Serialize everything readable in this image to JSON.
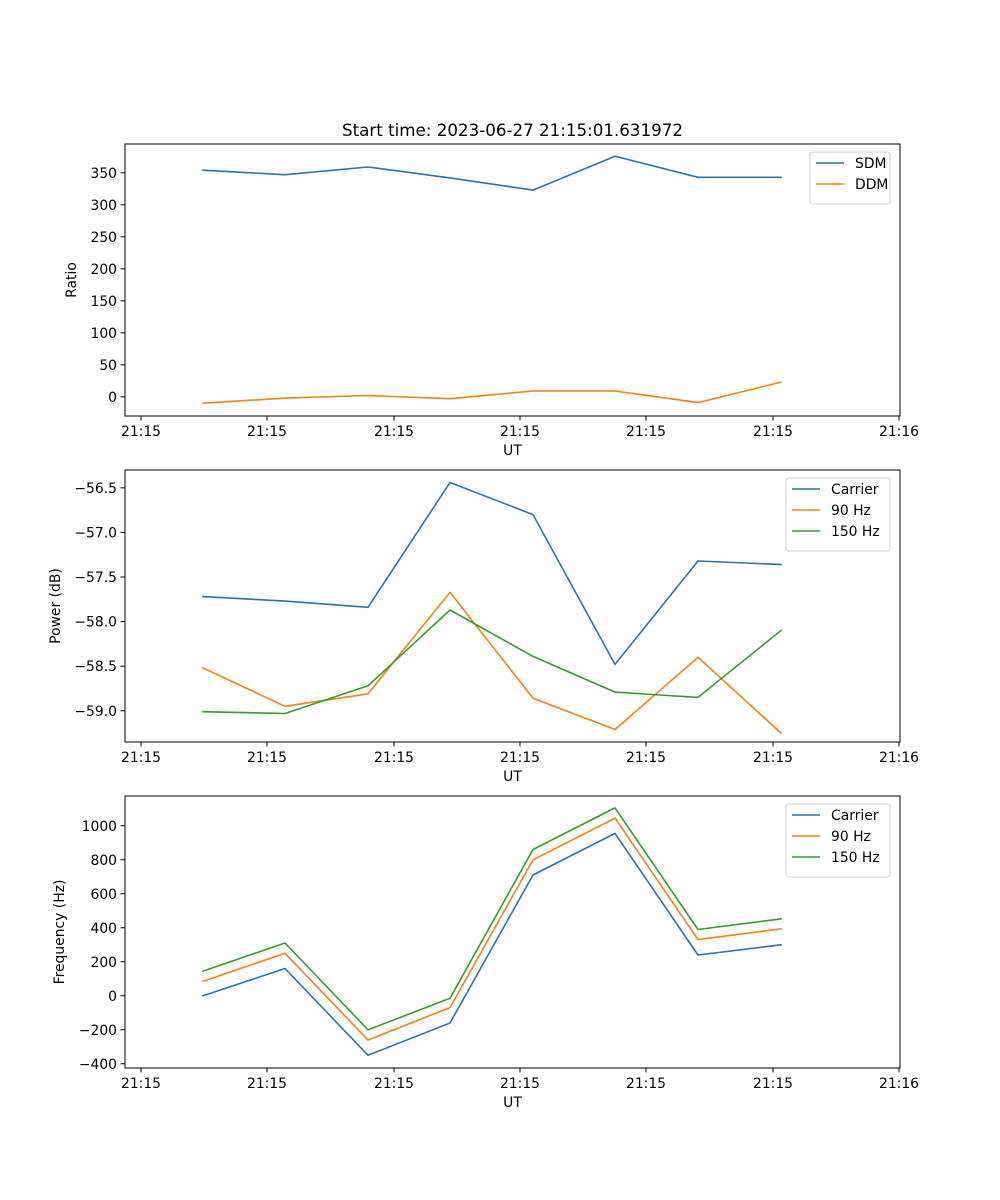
{
  "figure_title": "Start time: 2023-06-27 21:15:01.631972",
  "colors": {
    "blue": "#1f77b4",
    "orange": "#ff7f0e",
    "green": "#2ca02c"
  },
  "chart_data": [
    {
      "type": "line",
      "title": "",
      "xlabel": "UT",
      "ylabel": "Ratio",
      "x_tick_labels": [
        "21:15",
        "21:15",
        "21:15",
        "21:15",
        "21:15",
        "21:15",
        "21:16"
      ],
      "ylim": [
        -30,
        395
      ],
      "y_ticks": [
        0,
        50,
        100,
        150,
        200,
        250,
        300,
        350
      ],
      "y_tick_labels": [
        "0",
        "50",
        "100",
        "150",
        "200",
        "250",
        "300",
        "350"
      ],
      "legend_position": "upper right",
      "series": [
        {
          "name": "SDM",
          "color": "#1f77b4",
          "values": [
            354,
            347,
            359,
            342,
            323,
            376,
            343,
            343
          ]
        },
        {
          "name": "DDM",
          "color": "#ff7f0e",
          "values": [
            -10,
            -2,
            2,
            -3,
            9,
            9,
            -9,
            23
          ]
        }
      ]
    },
    {
      "type": "line",
      "title": "",
      "xlabel": "UT",
      "ylabel": "Power (dB)",
      "x_tick_labels": [
        "21:15",
        "21:15",
        "21:15",
        "21:15",
        "21:15",
        "21:15",
        "21:16"
      ],
      "ylim": [
        -59.35,
        -56.3
      ],
      "y_ticks": [
        -59.0,
        -58.5,
        -58.0,
        -57.5,
        -57.0,
        -56.5
      ],
      "y_tick_labels": [
        "−59.0",
        "−58.5",
        "−58.0",
        "−57.5",
        "−57.0",
        "−56.5"
      ],
      "legend_position": "upper right",
      "series": [
        {
          "name": "Carrier",
          "color": "#1f77b4",
          "values": [
            -57.72,
            -57.77,
            -57.84,
            -56.44,
            -56.8,
            -58.48,
            -57.32,
            -57.36
          ]
        },
        {
          "name": "90 Hz",
          "color": "#ff7f0e",
          "values": [
            -58.52,
            -58.95,
            -58.81,
            -57.67,
            -58.86,
            -59.21,
            -58.4,
            -59.25
          ]
        },
        {
          "name": "150 Hz",
          "color": "#2ca02c",
          "values": [
            -59.01,
            -59.03,
            -58.72,
            -57.87,
            -58.39,
            -58.79,
            -58.85,
            -58.1
          ]
        }
      ]
    },
    {
      "type": "line",
      "title": "",
      "xlabel": "UT",
      "ylabel": "Frequency (Hz)",
      "x_tick_labels": [
        "21:15",
        "21:15",
        "21:15",
        "21:15",
        "21:15",
        "21:15",
        "21:16"
      ],
      "ylim": [
        -425,
        1175
      ],
      "y_ticks": [
        -400,
        -200,
        0,
        200,
        400,
        600,
        800,
        1000
      ],
      "y_tick_labels": [
        "−400",
        "−200",
        "0",
        "200",
        "400",
        "600",
        "800",
        "1000"
      ],
      "legend_position": "upper right",
      "series": [
        {
          "name": "Carrier",
          "color": "#1f77b4",
          "values": [
            0,
            160,
            -350,
            -160,
            710,
            955,
            240,
            300
          ]
        },
        {
          "name": "90 Hz",
          "color": "#ff7f0e",
          "values": [
            85,
            250,
            -260,
            -70,
            800,
            1045,
            330,
            393
          ]
        },
        {
          "name": "150 Hz",
          "color": "#2ca02c",
          "values": [
            145,
            310,
            -200,
            -15,
            860,
            1105,
            390,
            452
          ]
        }
      ]
    }
  ]
}
